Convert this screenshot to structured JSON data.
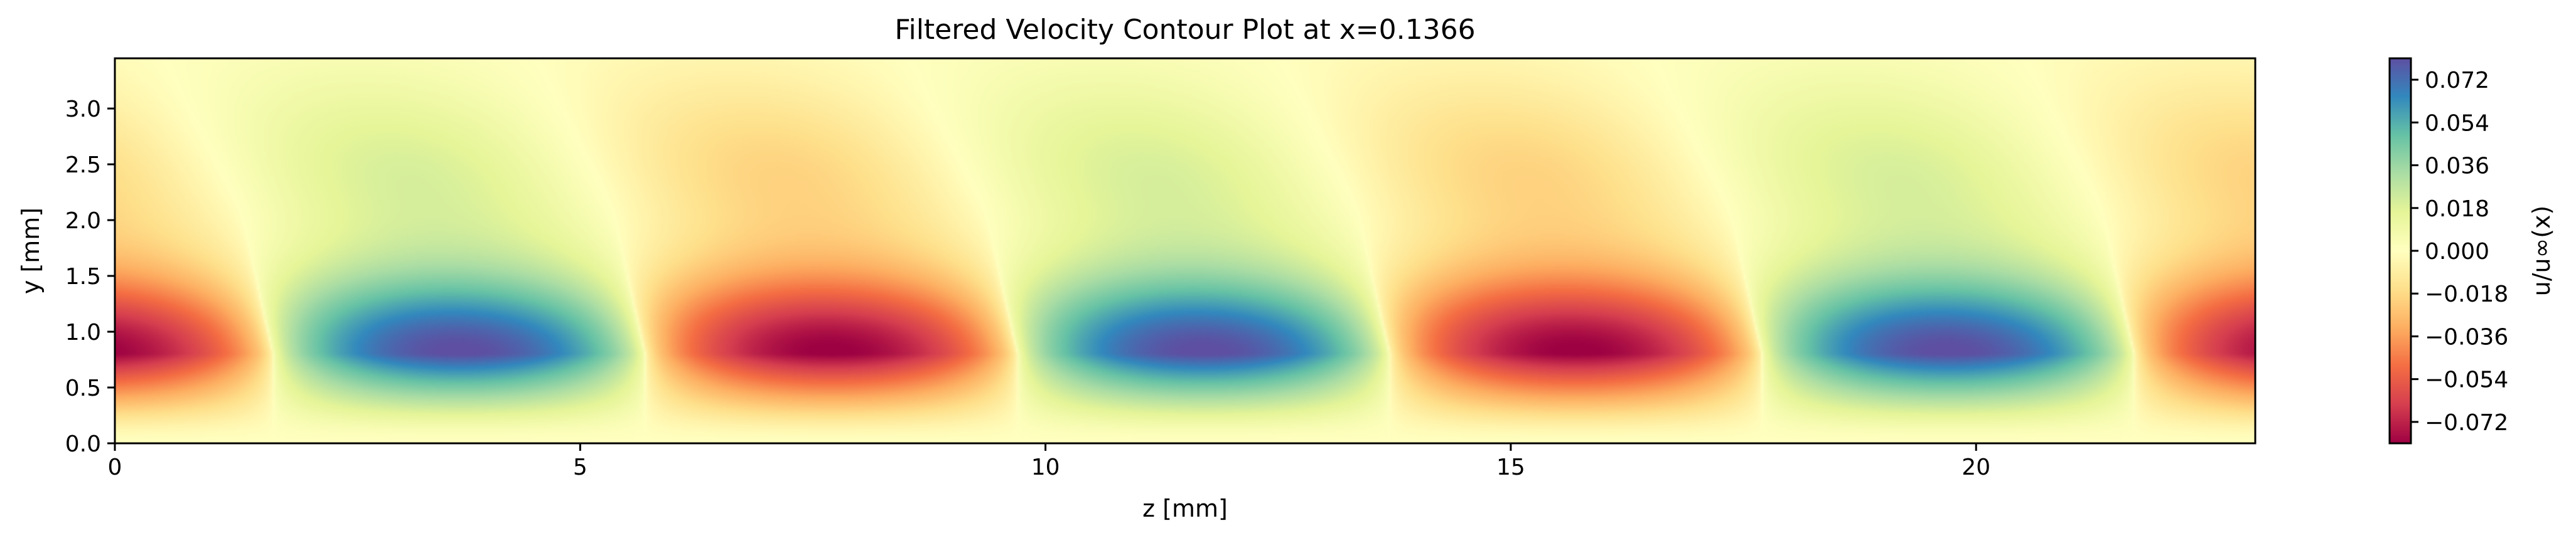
{
  "chart_data": {
    "type": "heatmap",
    "title": "Filtered Velocity Contour Plot at x=0.1366",
    "xlabel": "z [mm]",
    "ylabel": "y [mm]",
    "xlim": [
      0,
      23
    ],
    "ylim": [
      0,
      3.45
    ],
    "x_ticks": [
      0,
      5,
      10,
      15,
      20
    ],
    "x_tick_labels": [
      "0",
      "5",
      "10",
      "15",
      "20"
    ],
    "y_ticks": [
      0.0,
      0.5,
      1.0,
      1.5,
      2.0,
      2.5,
      3.0
    ],
    "y_tick_labels": [
      "0.0",
      "0.5",
      "1.0",
      "1.5",
      "2.0",
      "2.5",
      "3.0"
    ],
    "colorbar": {
      "label": "u/u∞(x)",
      "colormap": "Spectral",
      "vmin": -0.081,
      "vmax": 0.081,
      "ticks": [
        -0.072,
        -0.054,
        -0.036,
        -0.018,
        0.0,
        0.018,
        0.036,
        0.054,
        0.072
      ],
      "tick_labels": [
        "−0.072",
        "−0.054",
        "−0.036",
        "−0.018",
        "0.000",
        "0.018",
        "0.036",
        "0.054",
        "0.072"
      ]
    },
    "field": {
      "description": "streak pattern: alternating high/low velocity streaks centred at y≈0.8 mm",
      "y_center": 0.8,
      "extrema": [
        {
          "z": 0.0,
          "y": 0.8,
          "value": -0.06
        },
        {
          "z": 3.7,
          "y": 0.8,
          "value": 0.078
        },
        {
          "z": 7.6,
          "y": 0.8,
          "value": -0.081
        },
        {
          "z": 11.7,
          "y": 0.8,
          "value": 0.078
        },
        {
          "z": 15.6,
          "y": 0.8,
          "value": -0.081
        },
        {
          "z": 19.6,
          "y": 0.8,
          "value": 0.078
        },
        {
          "z": 23.0,
          "y": 0.8,
          "value": -0.06
        }
      ],
      "wavelength": 8.0
    }
  }
}
